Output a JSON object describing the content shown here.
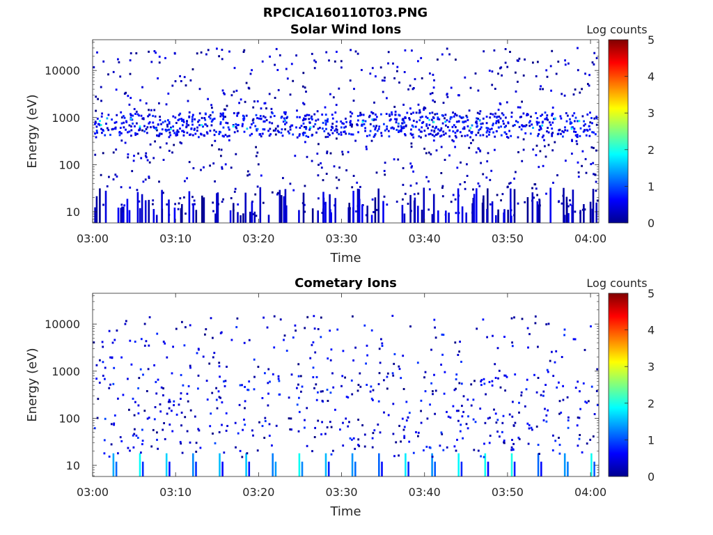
{
  "figure": {
    "suptitle": "RPCICA160110T03.PNG"
  },
  "chart_data": [
    {
      "type": "heatmap",
      "title": "Solar Wind Ions",
      "xlabel": "Time",
      "ylabel": "Energy (eV)",
      "x_range": [
        "03:00",
        "04:01"
      ],
      "x_ticks": [
        "03:00",
        "03:10",
        "03:20",
        "03:30",
        "03:40",
        "03:50",
        "04:00"
      ],
      "y_scale": "log",
      "y_range": [
        5.8,
        45000
      ],
      "y_ticks": [
        "10",
        "100",
        "1000",
        "10000"
      ],
      "colorbar": {
        "label": "Log counts",
        "ticks": [
          "0",
          "1",
          "2",
          "3",
          "4",
          "5"
        ],
        "range": [
          0,
          5
        ],
        "colormap": "jet"
      },
      "grid": false,
      "features": [
        {
          "description": "scattered single counts across all energies",
          "energy_range_eV": [
            5.8,
            30000
          ],
          "log_counts": [
            0,
            0.7
          ]
        },
        {
          "description": "solar wind band",
          "energy_range_eV": [
            400,
            1300
          ],
          "log_counts": [
            0.5,
            2.2
          ]
        },
        {
          "description": "low-energy streaks",
          "energy_range_eV": [
            5.8,
            30
          ],
          "log_counts": [
            0,
            0.8
          ]
        }
      ]
    },
    {
      "type": "heatmap",
      "title": "Cometary Ions",
      "xlabel": "Time",
      "ylabel": "Energy (eV)",
      "x_range": [
        "03:00",
        "04:01"
      ],
      "x_ticks": [
        "03:00",
        "03:10",
        "03:20",
        "03:30",
        "03:40",
        "03:50",
        "04:00"
      ],
      "y_scale": "log",
      "y_range": [
        5.8,
        45000
      ],
      "y_ticks": [
        "10",
        "100",
        "1000",
        "10000"
      ],
      "colorbar": {
        "label": "Log counts",
        "ticks": [
          "0",
          "1",
          "2",
          "3",
          "4",
          "5"
        ],
        "range": [
          0,
          5
        ],
        "colormap": "jet"
      },
      "grid": false,
      "features": [
        {
          "description": "periodic low-energy bursts about every 3.2 min",
          "energy_range_eV": [
            5.8,
            30
          ],
          "log_counts": [
            0.5,
            2.0
          ]
        },
        {
          "description": "sparse counts at intermediate and high energies",
          "energy_range_eV": [
            20,
            15000
          ],
          "log_counts": [
            0,
            1.0
          ]
        }
      ]
    }
  ]
}
